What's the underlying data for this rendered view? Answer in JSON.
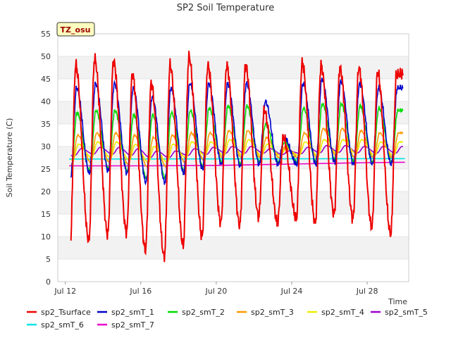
{
  "chart_data": {
    "type": "line",
    "title": "SP2 Soil Temperature",
    "xlabel": "Time",
    "ylabel": "Soil Temperature (C)",
    "badge": "TZ_osu",
    "xlim": [
      11.6,
      30.2
    ],
    "ylim": [
      0,
      55
    ],
    "yticks": [
      0,
      5,
      10,
      15,
      20,
      25,
      30,
      35,
      40,
      45,
      50,
      55
    ],
    "xticks": [
      {
        "day": 12,
        "label": "Jul 12"
      },
      {
        "day": 16,
        "label": "Jul 16"
      },
      {
        "day": 20,
        "label": "Jul 20"
      },
      {
        "day": 24,
        "label": "Jul 24"
      },
      {
        "day": 28,
        "label": "Jul 28"
      }
    ],
    "grid": "horizontal bands",
    "legend_position": "bottom",
    "x_note": "x values are day-of-July (fractional days)",
    "daily_extremes": {
      "days": [
        12,
        13,
        14,
        15,
        16,
        17,
        18,
        19,
        20,
        21,
        22,
        23,
        24,
        25,
        26,
        27,
        28,
        29
      ],
      "sp2_Tsurface_max": [
        48,
        49.5,
        49,
        46,
        44,
        48,
        50,
        48,
        48,
        48,
        38,
        32,
        48.5,
        48,
        47.5,
        47.5,
        46.5,
        46
      ],
      "sp2_Tsurface_min": [
        6.5,
        9,
        10.5,
        11,
        7,
        5.5,
        8,
        10,
        13,
        12.5,
        14.5,
        13,
        14,
        13,
        15,
        14,
        12,
        10.5
      ],
      "sp2_smT_1_max": [
        43,
        44,
        44,
        43,
        41,
        43,
        44,
        44,
        44,
        44,
        40,
        32,
        44,
        45,
        44.5,
        44,
        43,
        43
      ],
      "sp2_smT_1_min": [
        23,
        24,
        24.5,
        24,
        22,
        22,
        24,
        25,
        26,
        25.5,
        26,
        26,
        26,
        26,
        26.5,
        26,
        26,
        26
      ],
      "sp2_smT_2_max": [
        37.5,
        38,
        38,
        37,
        37,
        37.5,
        38,
        38.5,
        39,
        39,
        35,
        31,
        38.5,
        39.5,
        39.5,
        39,
        38.5,
        38
      ],
      "sp2_smT_2_min": [
        24,
        24.5,
        25,
        24.5,
        23,
        23,
        24.5,
        25.5,
        26.5,
        26,
        26.5,
        26.5,
        26.5,
        26.5,
        27,
        26.5,
        26.5,
        26.5
      ],
      "sp2_smT_3_max": [
        32.5,
        33,
        33,
        32.5,
        32,
        32.5,
        33,
        33,
        33.5,
        33.5,
        32,
        30,
        33,
        34,
        34,
        33.5,
        33,
        33
      ],
      "sp2_smT_3_min": [
        26,
        26.5,
        26.5,
        26,
        25.5,
        25.5,
        26.5,
        27,
        27.5,
        27.5,
        27.5,
        27.5,
        27.5,
        27.5,
        28,
        27.5,
        27.5,
        27.5
      ],
      "sp2_smT_4_max": [
        30.5,
        31,
        31,
        30.5,
        30,
        30.5,
        31,
        31,
        31.5,
        31.5,
        30.5,
        29.5,
        31,
        31.5,
        31.5,
        31.5,
        31,
        31
      ],
      "sp2_smT_4_min": [
        27,
        27.5,
        27.5,
        27,
        26.5,
        26.5,
        27.5,
        28,
        28,
        28,
        28,
        28,
        28,
        28,
        28.5,
        28.5,
        28,
        28
      ],
      "sp2_smT_5_max": [
        29.5,
        29.8,
        29.8,
        29.5,
        29,
        29,
        29.5,
        29.8,
        30,
        30,
        29.5,
        29,
        29.8,
        30.2,
        30.2,
        30,
        30,
        30
      ],
      "sp2_smT_5_min": [
        28,
        28.3,
        28.3,
        28,
        27.5,
        27.5,
        28,
        28.3,
        28.5,
        28.5,
        28.5,
        28.2,
        28.4,
        28.6,
        28.7,
        28.6,
        28.5,
        28.5
      ]
    },
    "series": [
      {
        "name": "sp2_Tsurface",
        "color": "#ee0000"
      },
      {
        "name": "sp2_smT_1",
        "color": "#0000cc"
      },
      {
        "name": "sp2_smT_2",
        "color": "#00dd00"
      },
      {
        "name": "sp2_smT_3",
        "color": "#ff9900"
      },
      {
        "name": "sp2_smT_4",
        "color": "#eeee00"
      },
      {
        "name": "sp2_smT_5",
        "color": "#9900cc"
      },
      {
        "name": "sp2_smT_6",
        "color": "#00e5e5",
        "x": [
          12.2,
          30
        ],
        "values": [
          27.2,
          27.3
        ]
      },
      {
        "name": "sp2_smT_7",
        "color": "#ee00cc",
        "x": [
          12.2,
          16,
          20,
          24,
          28,
          30
        ],
        "values": [
          25.7,
          25.7,
          25.8,
          26.1,
          26.4,
          26.5
        ]
      }
    ]
  }
}
